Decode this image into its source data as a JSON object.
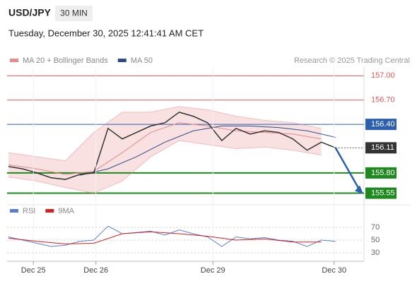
{
  "header": {
    "symbol": "USD/JPY",
    "interval": "30 MIN",
    "date": "Tuesday, December 30, 2025 12:41:41 AM CET",
    "credit": "Research © 2025 Trading Central"
  },
  "chart_data": [
    {
      "type": "line",
      "xlim": [
        0,
        100
      ],
      "ylim": [
        155.45,
        157.09
      ],
      "series": [
        {
          "name": "MA 20 + Bollinger Bands",
          "color": "#e8898b",
          "x": [
            0,
            8,
            16,
            24,
            32,
            40,
            48,
            56,
            64,
            72,
            80,
            88
          ],
          "values": [
            155.9,
            155.85,
            155.78,
            155.82,
            156.05,
            156.3,
            156.42,
            156.38,
            156.32,
            156.3,
            156.28,
            156.22
          ],
          "upper": [
            156.05,
            156.0,
            155.95,
            156.3,
            156.55,
            156.55,
            156.62,
            156.58,
            156.5,
            156.45,
            156.42,
            156.35
          ],
          "lower": [
            155.75,
            155.7,
            155.62,
            155.55,
            155.7,
            156.0,
            156.2,
            156.15,
            156.1,
            156.12,
            156.08,
            156.02
          ]
        },
        {
          "name": "MA 50",
          "color": "#2d4a8a",
          "x": [
            20,
            28,
            36,
            44,
            52,
            60,
            68,
            76,
            84,
            92
          ],
          "values": [
            155.77,
            155.85,
            156.0,
            156.18,
            156.32,
            156.38,
            156.38,
            156.36,
            156.32,
            156.24
          ]
        }
      ],
      "price": {
        "color": "#333333",
        "x": [
          0,
          4,
          8,
          12,
          16,
          20,
          24,
          28,
          32,
          36,
          40,
          44,
          48,
          52,
          56,
          60,
          64,
          68,
          72,
          76,
          80,
          84,
          88,
          92
        ],
        "values": [
          155.88,
          155.85,
          155.8,
          155.74,
          155.72,
          155.78,
          155.8,
          156.35,
          156.22,
          156.3,
          156.38,
          156.42,
          156.55,
          156.5,
          156.42,
          156.2,
          156.35,
          156.28,
          156.32,
          156.3,
          156.22,
          156.08,
          156.18,
          156.11
        ]
      },
      "levels": [
        {
          "value": 157.0,
          "label": "157.00",
          "color": "#e05a5a",
          "style": "text"
        },
        {
          "value": 156.7,
          "label": "156.70",
          "color": "#e05a5a",
          "style": "text"
        },
        {
          "value": 156.4,
          "label": "156.40",
          "color": "#2d5fb0",
          "style": "box"
        },
        {
          "value": 155.8,
          "label": "155.80",
          "color": "#1e8a1e",
          "style": "box"
        },
        {
          "value": 155.55,
          "label": "155.55",
          "color": "#1e8a1e",
          "style": "box"
        }
      ],
      "last_price": {
        "value": 156.11,
        "label": "156.11",
        "color": "#333333"
      }
    },
    {
      "type": "line",
      "xlim": [
        0,
        100
      ],
      "ylim": [
        20,
        80
      ],
      "yticks": [
        30,
        50,
        70
      ],
      "xticks": [
        {
          "value": 7,
          "label": "Dec 25"
        },
        {
          "value": 24.6,
          "label": "Dec 26"
        },
        {
          "value": 57.5,
          "label": "Dec 29"
        },
        {
          "value": 91.6,
          "label": "Dec 30"
        }
      ],
      "series": [
        {
          "name": "RSI",
          "color": "#5b7fd0",
          "x": [
            0,
            4,
            8,
            12,
            16,
            20,
            24,
            28,
            32,
            36,
            40,
            44,
            48,
            52,
            56,
            60,
            64,
            68,
            72,
            76,
            80,
            84,
            88,
            92
          ],
          "values": [
            55,
            50,
            45,
            40,
            42,
            48,
            50,
            72,
            60,
            62,
            64,
            58,
            66,
            60,
            55,
            40,
            55,
            52,
            54,
            50,
            48,
            40,
            50,
            48
          ]
        },
        {
          "name": "9MA",
          "color": "#d42020",
          "x": [
            0,
            8,
            16,
            24,
            32,
            40,
            48,
            56,
            64,
            72,
            80,
            88
          ],
          "values": [
            53,
            48,
            44,
            45,
            60,
            63,
            60,
            56,
            50,
            52,
            47,
            47
          ]
        }
      ]
    }
  ]
}
